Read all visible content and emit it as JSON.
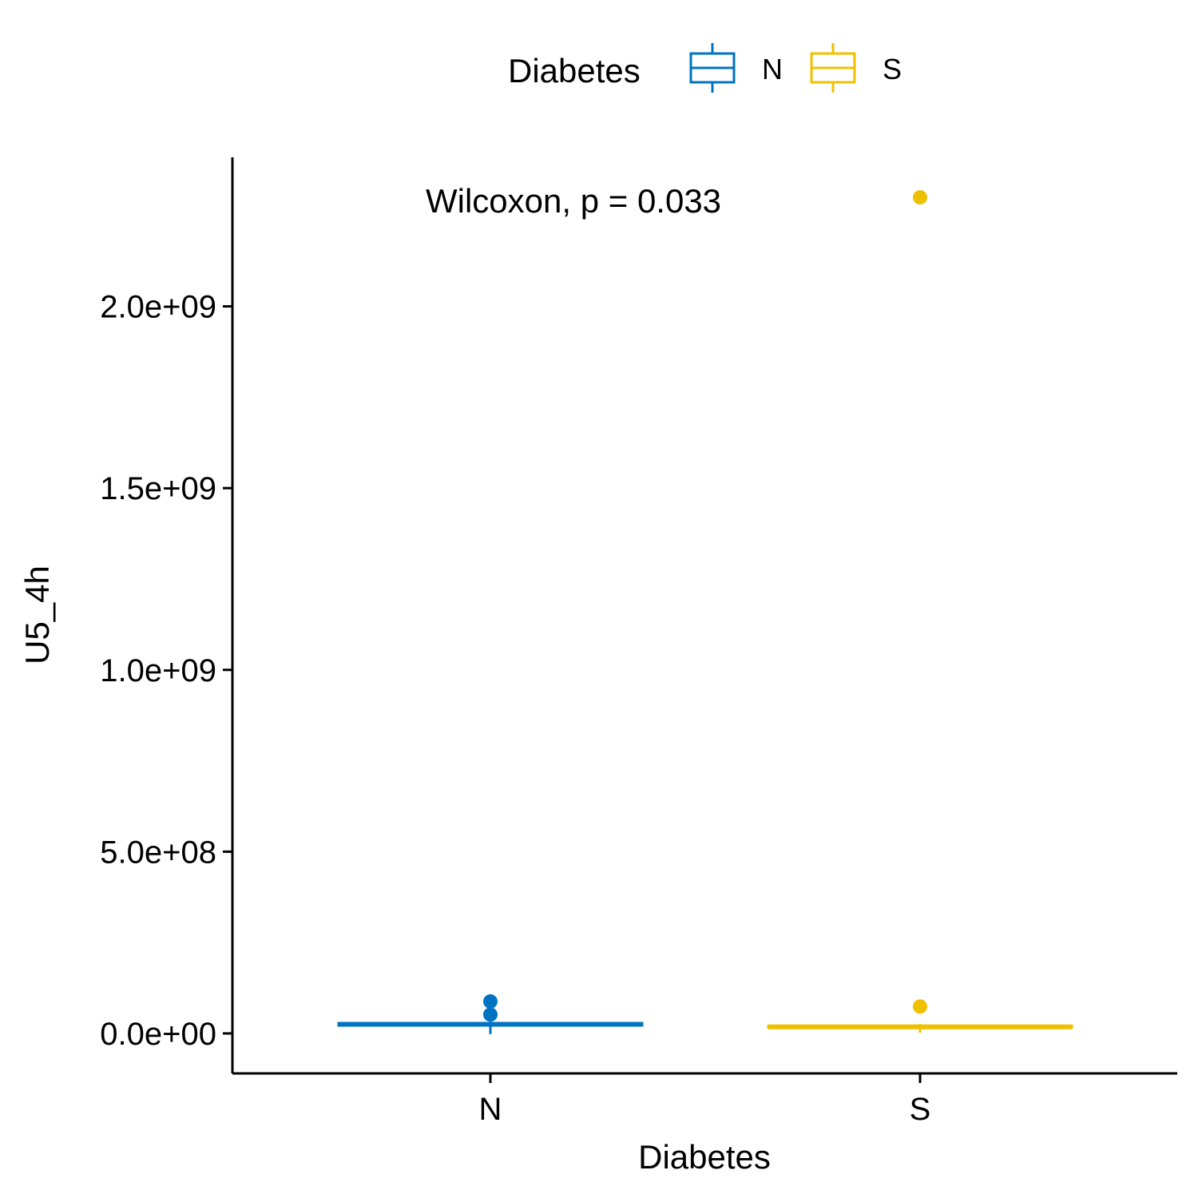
{
  "chart_data": {
    "type": "box",
    "xlabel": "Diabetes",
    "ylabel": "U5_4h",
    "categories": [
      "N",
      "S"
    ],
    "y_ticks": [
      0,
      500000000,
      1000000000,
      1500000000,
      2000000000
    ],
    "y_tick_labels": [
      "0.0e+00",
      "5.0e+08",
      "1.0e+09",
      "1.5e+09",
      "2.0e+09"
    ],
    "ylim": [
      -110000000,
      2410000000
    ],
    "legend": {
      "title": "Diabetes",
      "position": "top",
      "entries": [
        {
          "label": "N",
          "color": "#0073C2"
        },
        {
          "label": "S",
          "color": "#EFC000"
        }
      ]
    },
    "annotation": "Wilcoxon, p = 0.033",
    "series": [
      {
        "name": "N",
        "color": "#0073C2",
        "whisker_low": -2000000,
        "q1": 22000000,
        "median": 25000000,
        "q3": 28000000,
        "whisker_high": 32000000,
        "outliers": [
          52000000,
          88000000
        ]
      },
      {
        "name": "S",
        "color": "#EFC000",
        "whisker_low": 2000000,
        "q1": 16000000,
        "median": 18000000,
        "q3": 21000000,
        "whisker_high": 26000000,
        "outliers": [
          74000000,
          2300000000
        ]
      }
    ],
    "grid": false
  }
}
